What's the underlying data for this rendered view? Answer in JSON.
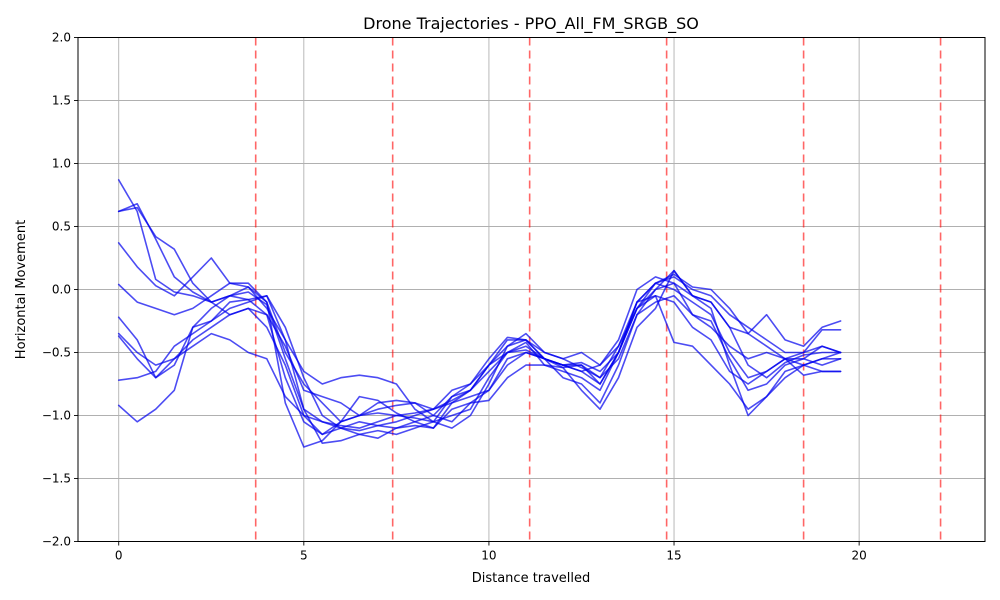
{
  "chart_data": {
    "type": "line",
    "title": "Drone Trajectories - PPO_All_FM_SRGB_SO",
    "xlabel": "Distance travelled",
    "ylabel": "Horizontal Movement",
    "xlim": [
      -1.1,
      23.4
    ],
    "ylim": [
      -2.0,
      2.0
    ],
    "x_ticks": [
      0,
      5,
      10,
      15,
      20
    ],
    "x_tick_labels": [
      "0",
      "5",
      "10",
      "15",
      "20"
    ],
    "y_ticks": [
      -2.0,
      -1.5,
      -1.0,
      -0.5,
      0.0,
      0.5,
      1.0,
      1.5,
      2.0
    ],
    "y_tick_labels": [
      "−2.0",
      "−1.5",
      "−1.0",
      "−0.5",
      "0.0",
      "0.5",
      "1.0",
      "1.5",
      "2.0"
    ],
    "grid": true,
    "series_color": "#0000ee",
    "series_opacity": 0.7,
    "vline_color": "#ff0000",
    "vline_opacity": 0.6,
    "vlines": [
      3.7,
      7.4,
      11.1,
      14.8,
      18.5,
      22.2
    ],
    "x": [
      0,
      0.5,
      1,
      1.5,
      2,
      2.5,
      3,
      3.5,
      4,
      4.5,
      5,
      5.5,
      6,
      6.5,
      7,
      7.5,
      8,
      8.5,
      9,
      9.5,
      10,
      10.5,
      11,
      11.5,
      12,
      12.5,
      13,
      13.5,
      14,
      14.5,
      15,
      15.5,
      16,
      16.5,
      17,
      17.5,
      18,
      18.5,
      19,
      19.5
    ],
    "series": [
      {
        "values": [
          0.87,
          0.62,
          0.08,
          -0.02,
          -0.05,
          -0.1,
          -0.05,
          -0.02,
          -0.12,
          -0.55,
          -0.95,
          -1.05,
          -1.08,
          -1.1,
          -1.05,
          -1.0,
          -0.98,
          -0.95,
          -0.88,
          -0.8,
          -0.6,
          -0.4,
          -0.4,
          -0.55,
          -0.6,
          -0.65,
          -0.6,
          -0.45,
          -0.1,
          0.05,
          0.12,
          0.02,
          0.0,
          -0.15,
          -0.35,
          -0.45,
          -0.55,
          -0.55,
          -0.45,
          -0.5
        ]
      },
      {
        "values": [
          0.62,
          0.68,
          0.4,
          0.1,
          -0.02,
          -0.1,
          -0.2,
          -0.15,
          -0.3,
          -0.6,
          -1.0,
          -1.15,
          -1.1,
          -1.05,
          -1.08,
          -1.1,
          -1.05,
          -1.0,
          -0.85,
          -0.75,
          -0.6,
          -0.45,
          -0.4,
          -0.5,
          -0.55,
          -0.62,
          -0.7,
          -0.55,
          -0.2,
          0.0,
          0.15,
          -0.05,
          -0.1,
          -0.3,
          -0.6,
          -0.7,
          -0.58,
          -0.52,
          -0.5,
          -0.5
        ]
      },
      {
        "values": [
          0.37,
          0.18,
          0.03,
          -0.05,
          0.1,
          0.25,
          0.05,
          0.05,
          -0.1,
          -0.5,
          -0.75,
          -0.9,
          -1.05,
          -1.0,
          -0.95,
          -0.92,
          -0.9,
          -0.95,
          -0.8,
          -0.75,
          -0.55,
          -0.38,
          -0.4,
          -0.55,
          -0.6,
          -0.58,
          -0.65,
          -0.5,
          -0.1,
          0.05,
          0.1,
          0.0,
          -0.05,
          -0.2,
          -0.3,
          -0.4,
          -0.5,
          -0.5,
          -0.45,
          -0.5
        ]
      },
      {
        "values": [
          0.04,
          -0.1,
          -0.15,
          -0.2,
          -0.15,
          -0.05,
          0.05,
          0.02,
          -0.15,
          -0.4,
          -0.65,
          -0.75,
          -0.7,
          -0.68,
          -0.7,
          -0.75,
          -0.95,
          -1.05,
          -1.1,
          -1.0,
          -0.75,
          -0.45,
          -0.35,
          -0.5,
          -0.55,
          -0.5,
          -0.6,
          -0.4,
          0.0,
          0.1,
          0.05,
          -0.05,
          -0.1,
          -0.3,
          -0.35,
          -0.2,
          -0.4,
          -0.45,
          -0.3,
          -0.25
        ]
      },
      {
        "values": [
          -0.22,
          -0.4,
          -0.7,
          -0.55,
          -0.4,
          -0.3,
          -0.2,
          -0.15,
          -0.2,
          -0.45,
          -0.8,
          -0.85,
          -0.9,
          -1.0,
          -0.9,
          -0.88,
          -0.9,
          -1.0,
          -1.05,
          -0.9,
          -0.8,
          -0.55,
          -0.5,
          -0.55,
          -0.6,
          -0.65,
          -0.75,
          -0.5,
          -0.15,
          0.05,
          0.0,
          -0.1,
          -0.2,
          -0.5,
          -0.7,
          -0.65,
          -0.55,
          -0.6,
          -0.55,
          -0.55
        ]
      },
      {
        "values": [
          -0.35,
          -0.5,
          -0.6,
          -0.55,
          -0.45,
          -0.35,
          -0.4,
          -0.5,
          -0.55,
          -0.85,
          -1.0,
          -1.05,
          -1.1,
          -1.15,
          -1.12,
          -1.15,
          -1.1,
          -1.05,
          -1.0,
          -0.95,
          -0.7,
          -0.5,
          -0.45,
          -0.55,
          -0.7,
          -0.75,
          -0.9,
          -0.6,
          -0.2,
          -0.1,
          -0.05,
          -0.2,
          -0.25,
          -0.55,
          -0.8,
          -0.75,
          -0.6,
          -0.55,
          -0.6,
          -0.55
        ]
      },
      {
        "values": [
          -0.37,
          -0.55,
          -0.7,
          -0.6,
          -0.3,
          -0.25,
          -0.1,
          -0.08,
          -0.05,
          -0.3,
          -0.7,
          -1.0,
          -1.1,
          -1.12,
          -1.08,
          -1.05,
          -1.0,
          -0.95,
          -0.9,
          -0.8,
          -0.65,
          -0.5,
          -0.42,
          -0.6,
          -0.62,
          -0.8,
          -0.95,
          -0.7,
          -0.3,
          -0.15,
          0.15,
          -0.05,
          -0.15,
          -0.6,
          -1.0,
          -0.85,
          -0.7,
          -0.6,
          -0.55,
          -0.5
        ]
      },
      {
        "values": [
          -0.72,
          -0.7,
          -0.65,
          -0.45,
          -0.35,
          -0.25,
          -0.15,
          -0.1,
          -0.05,
          -0.4,
          -0.95,
          -1.22,
          -1.2,
          -1.15,
          -1.18,
          -1.1,
          -1.08,
          -1.1,
          -0.9,
          -0.85,
          -0.8,
          -0.6,
          -0.5,
          -0.55,
          -0.62,
          -0.6,
          -0.7,
          -0.45,
          -0.15,
          -0.05,
          -0.1,
          -0.3,
          -0.4,
          -0.65,
          -0.75,
          -0.65,
          -0.55,
          -0.68,
          -0.65,
          -0.65
        ]
      },
      {
        "values": [
          -0.92,
          -1.05,
          -0.95,
          -0.8,
          -0.3,
          -0.15,
          -0.05,
          0.02,
          -0.1,
          -0.9,
          -1.25,
          -1.2,
          -1.05,
          -0.85,
          -0.88,
          -0.98,
          -1.05,
          -1.1,
          -0.95,
          -0.9,
          -0.88,
          -0.7,
          -0.6,
          -0.6,
          -0.65,
          -0.7,
          -0.8,
          -0.5,
          -0.1,
          -0.05,
          -0.42,
          -0.45,
          -0.6,
          -0.75,
          -0.95,
          -0.85,
          -0.65,
          -0.6,
          -0.65,
          -0.65
        ]
      },
      {
        "values": [
          0.62,
          0.65,
          0.42,
          0.32,
          0.05,
          -0.1,
          -0.05,
          -0.08,
          -0.2,
          -0.7,
          -1.05,
          -1.15,
          -1.05,
          -1.0,
          -0.98,
          -1.0,
          -1.02,
          -1.05,
          -0.85,
          -0.8,
          -0.6,
          -0.5,
          -0.48,
          -0.55,
          -0.6,
          -0.6,
          -0.75,
          -0.5,
          -0.15,
          0.0,
          0.05,
          -0.2,
          -0.3,
          -0.45,
          -0.55,
          -0.5,
          -0.55,
          -0.5,
          -0.32,
          -0.32
        ]
      }
    ]
  }
}
